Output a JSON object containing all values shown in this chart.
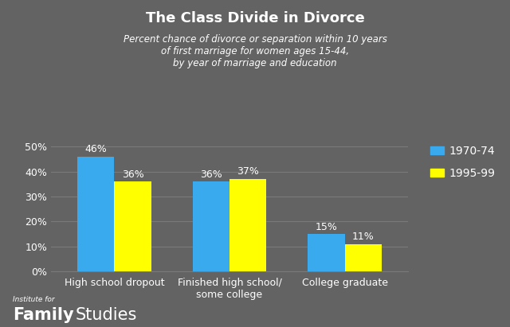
{
  "title": "The Class Divide in Divorce",
  "subtitle": "Percent chance of divorce or separation within 10 years\nof first marriage for women ages 15-44,\nby year of marriage and education",
  "categories": [
    "High school dropout",
    "Finished high school/\nsome college",
    "College graduate"
  ],
  "series": [
    {
      "label": "1970-74",
      "values": [
        46,
        36,
        15
      ],
      "color": "#3AAAEE"
    },
    {
      "label": "1995-99",
      "values": [
        36,
        37,
        11
      ],
      "color": "#FFFF00"
    }
  ],
  "ylim": [
    0,
    55
  ],
  "yticks": [
    0,
    10,
    20,
    30,
    40,
    50
  ],
  "ytick_labels": [
    "0%",
    "10%",
    "20%",
    "30%",
    "40%",
    "50%"
  ],
  "background_color": "#636363",
  "plot_bg_color": "#636363",
  "grid_color": "#7a7a7a",
  "text_color": "#FFFFFF",
  "bar_width": 0.32,
  "watermark_institute": "Institute for",
  "watermark_family": "Family",
  "watermark_studies": "Studies"
}
